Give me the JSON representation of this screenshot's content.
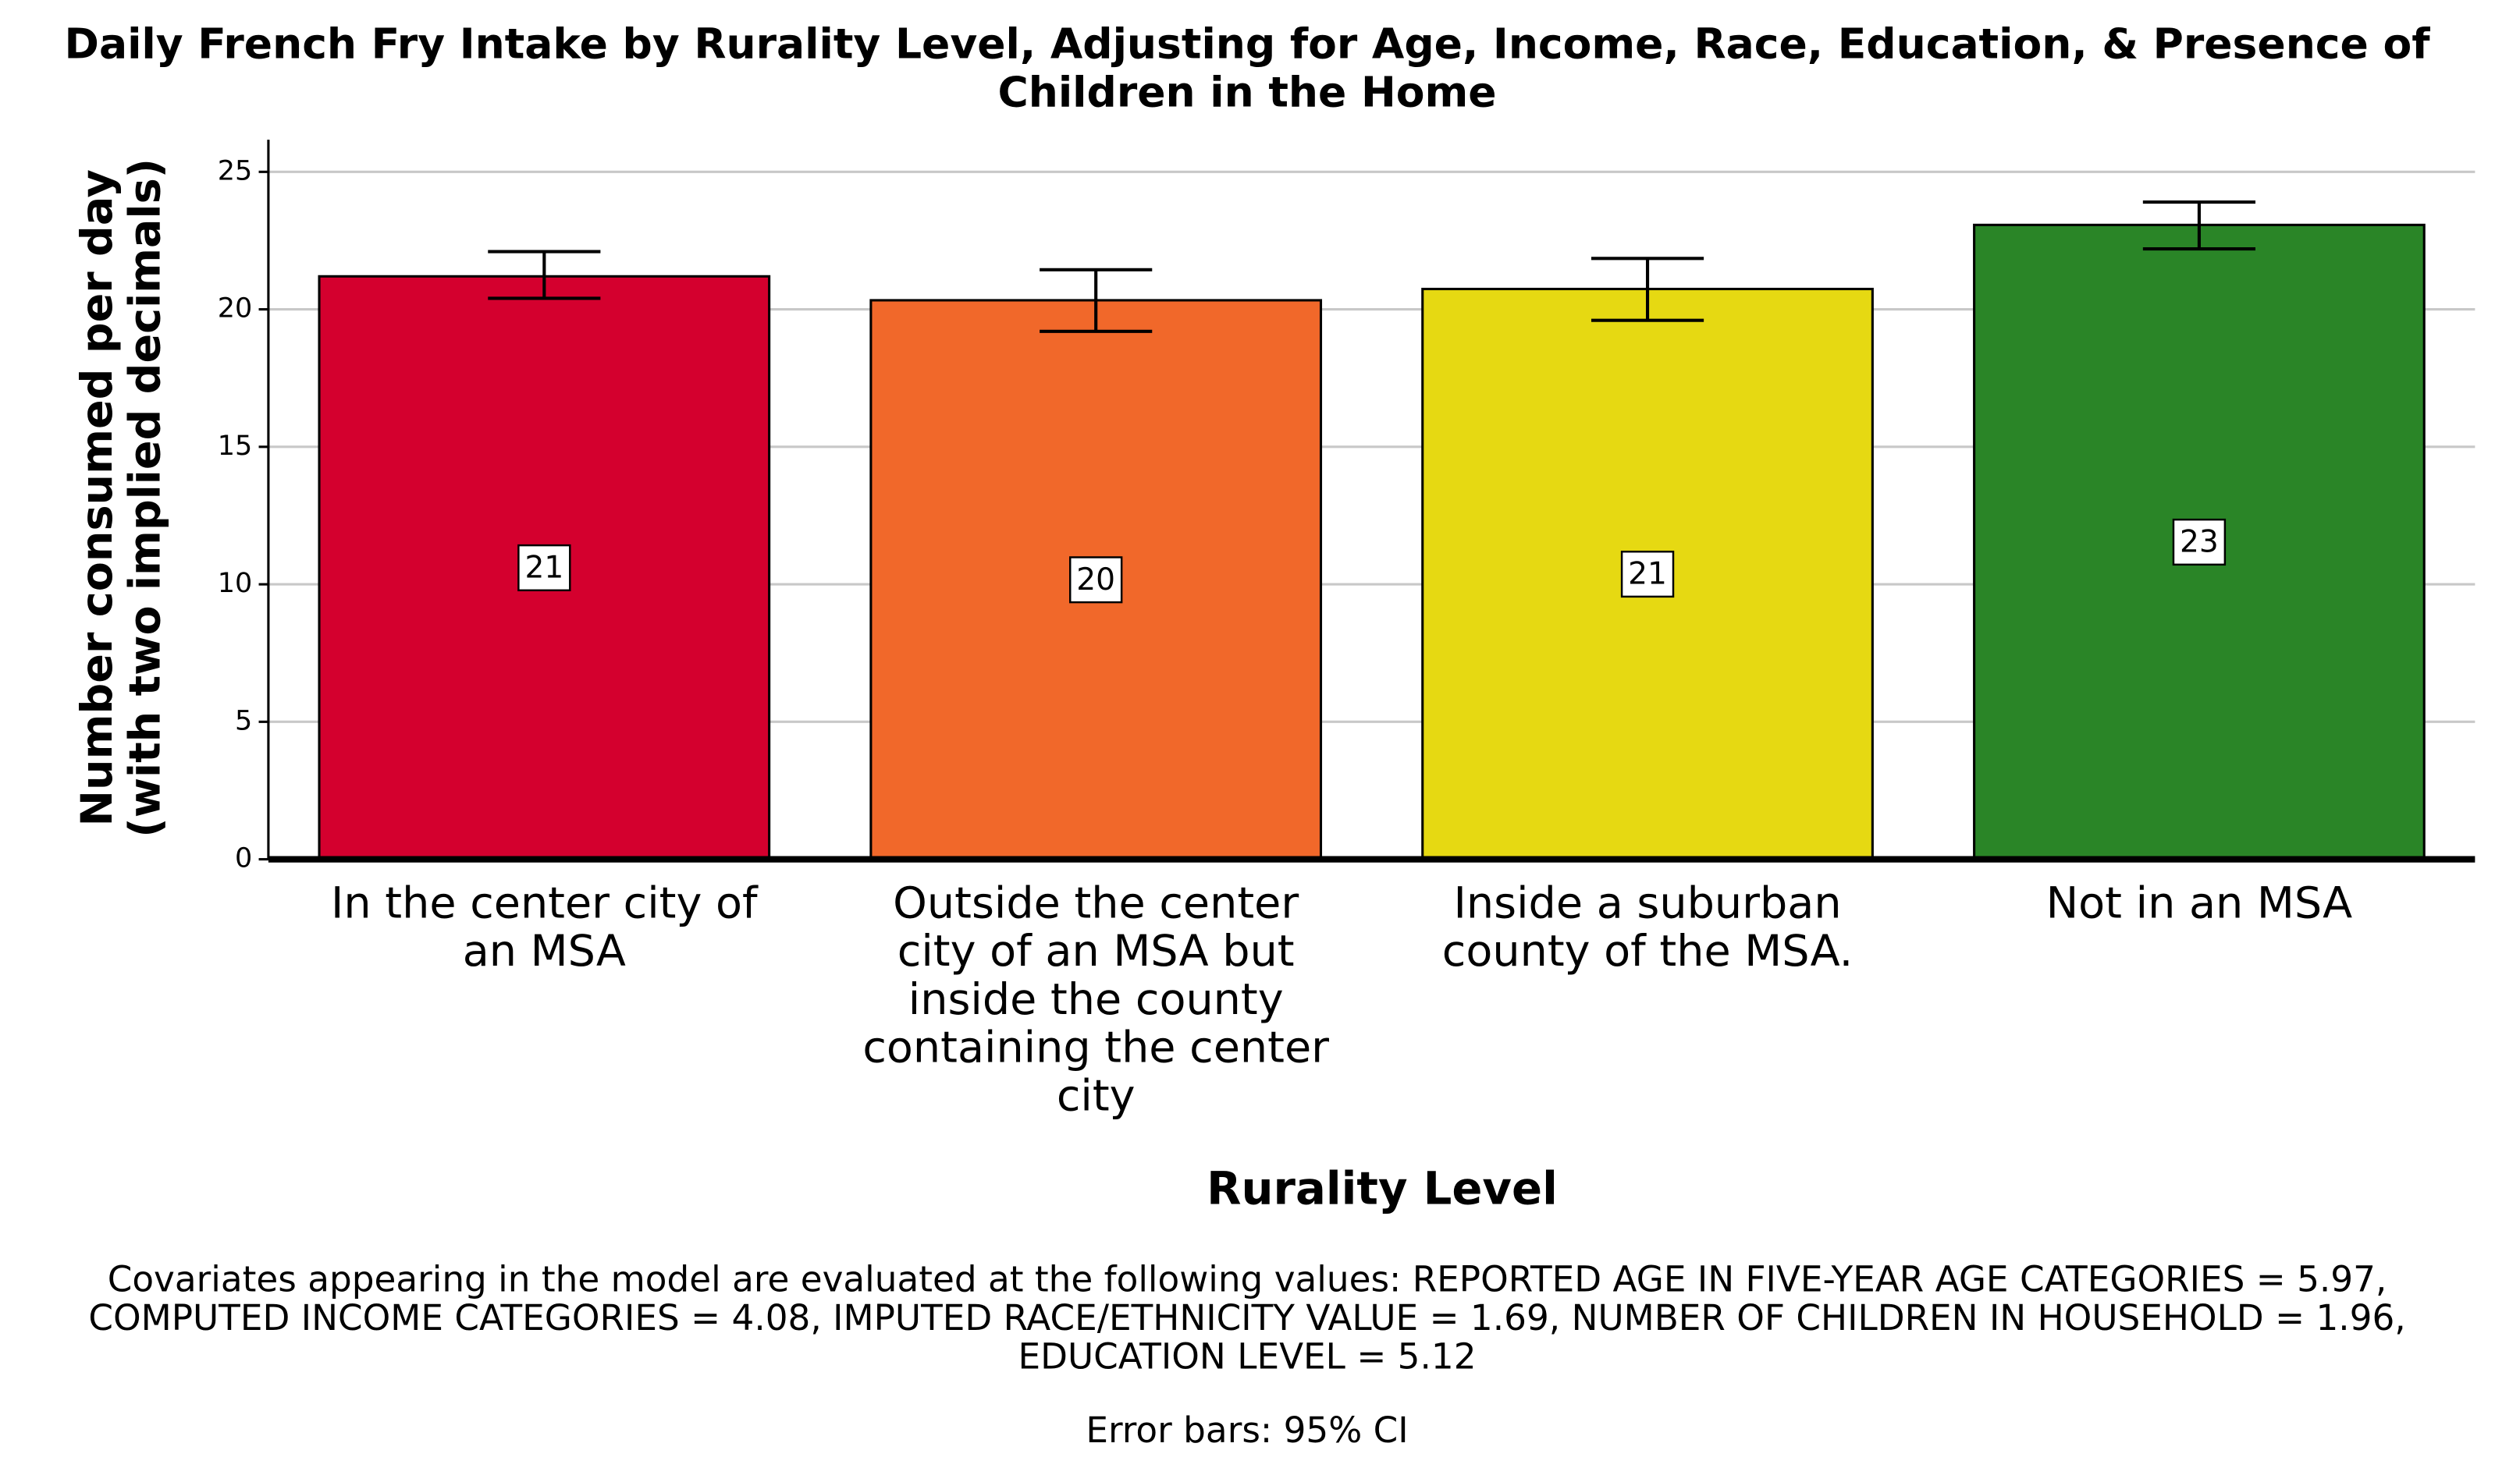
{
  "chart_data": {
    "type": "bar",
    "title": "Daily French Fry Intake by Rurality Level, Adjusting for Age, Income, Race, Education, & Presence of Children in the Home",
    "ylabel": [
      "Number consumed per day",
      "(with two implied decimals)"
    ],
    "xlabel": "Rurality Level",
    "categories": [
      "In the center city of an MSA",
      "Outside the center city of an MSA but inside the county containing the center city",
      "Inside a suburban county of the MSA.",
      "Not in an MSA"
    ],
    "values": [
      21.2,
      20.33,
      20.74,
      23.07
    ],
    "value_labels": [
      "21",
      "20",
      "21",
      "23"
    ],
    "ci_lower": [
      20.4,
      19.2,
      19.6,
      22.2
    ],
    "ci_upper": [
      22.1,
      21.44,
      21.85,
      23.9
    ],
    "colors": [
      "#d4002e",
      "#f1682a",
      "#e6d912",
      "#2a8527"
    ],
    "ylim": [
      0,
      25
    ],
    "yticks": [
      0,
      5,
      10,
      15,
      20,
      25
    ],
    "grid": true,
    "notes": [
      "Covariates appearing in the model are evaluated at the following values: REPORTED AGE IN FIVE-YEAR AGE CATEGORIES = 5.97,",
      "COMPUTED INCOME CATEGORIES = 4.08, IMPUTED RACE/ETHNICITY VALUE = 1.69, NUMBER OF CHILDREN IN HOUSEHOLD = 1.96,",
      "EDUCATION LEVEL = 5.12"
    ],
    "error_note": "Error bars: 95% CI"
  }
}
